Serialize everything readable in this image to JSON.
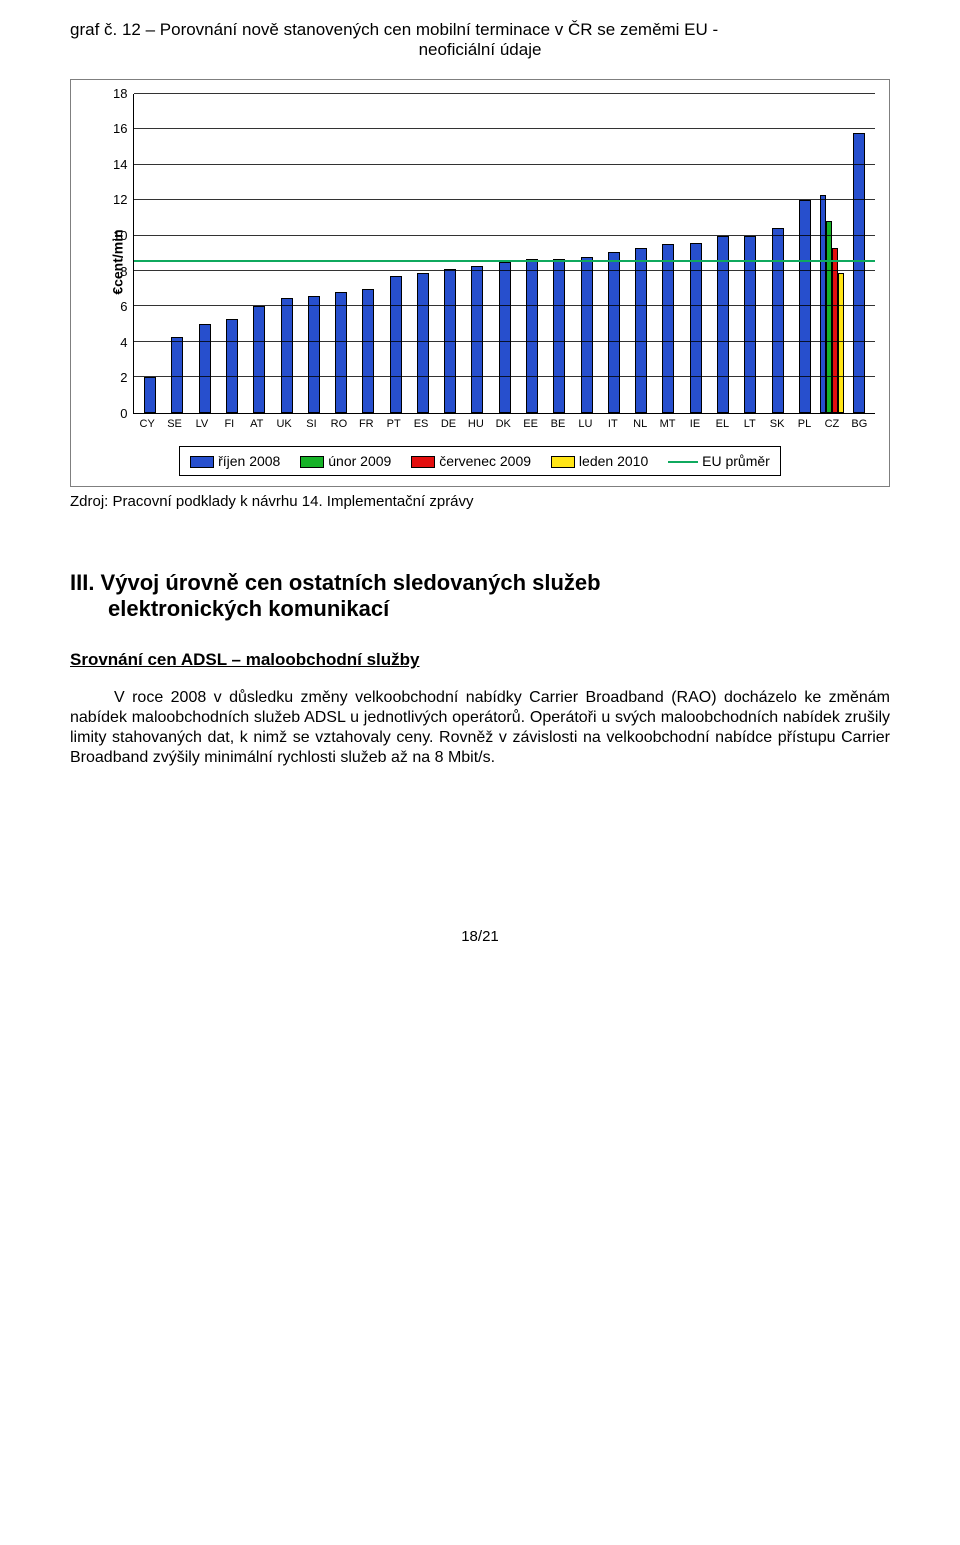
{
  "chart_title_l1": "graf č. 12 – Porovnání nově stanovených cen mobilní terminace v ČR se zeměmi EU -",
  "chart_title_l2": "neoficiální údaje",
  "chart": {
    "y_axis_label": "€cent/min",
    "ymax": 18,
    "ytick_step": 2,
    "avg_value": 8.5,
    "colors": {
      "oct2008": "#274fcd",
      "feb2009": "#16b227",
      "jul2009": "#e30e0e",
      "jan2010": "#ffe516",
      "eu_avg": "#0fa95e",
      "grid": "#000000"
    },
    "categories": [
      "CY",
      "SE",
      "LV",
      "FI",
      "AT",
      "UK",
      "SI",
      "RO",
      "FR",
      "PT",
      "ES",
      "DE",
      "HU",
      "DK",
      "EE",
      "BE",
      "LU",
      "IT",
      "NL",
      "MT",
      "IE",
      "EL",
      "LT",
      "SK",
      "PL",
      "CZ",
      "BG"
    ],
    "series": {
      "oct2008": [
        2.0,
        4.3,
        5.0,
        5.3,
        6.0,
        6.5,
        6.6,
        6.8,
        7.0,
        7.7,
        7.9,
        8.1,
        8.3,
        8.5,
        8.7,
        8.7,
        8.8,
        9.1,
        9.3,
        9.5,
        9.6,
        10.0,
        10.0,
        10.4,
        12.0,
        12.3,
        15.8
      ],
      "feb2009": [
        null,
        null,
        null,
        null,
        null,
        null,
        null,
        null,
        null,
        null,
        null,
        null,
        null,
        null,
        null,
        null,
        null,
        null,
        null,
        null,
        null,
        null,
        null,
        null,
        null,
        10.8,
        null
      ],
      "jul2009": [
        null,
        null,
        null,
        null,
        null,
        null,
        null,
        null,
        null,
        null,
        null,
        null,
        null,
        null,
        null,
        null,
        null,
        null,
        null,
        null,
        null,
        null,
        null,
        null,
        null,
        9.3,
        null
      ],
      "jan2010": [
        null,
        null,
        null,
        null,
        null,
        null,
        null,
        null,
        null,
        null,
        null,
        null,
        null,
        null,
        null,
        null,
        null,
        null,
        null,
        null,
        null,
        null,
        null,
        null,
        null,
        7.9,
        null
      ]
    },
    "legend": [
      {
        "key": "oct2008",
        "label": "říjen 2008"
      },
      {
        "key": "feb2009",
        "label": "únor 2009"
      },
      {
        "key": "jul2009",
        "label": "červenec 2009"
      },
      {
        "key": "jan2010",
        "label": "leden 2010"
      },
      {
        "key": "eu_avg",
        "label": "EU průměr",
        "is_line": true
      }
    ]
  },
  "source_text": "Zdroj: Pracovní podklady k návrhu 14. Implementační zprávy",
  "section_heading_l1": "III. Vývoj úrovně cen ostatních sledovaných služeb",
  "section_heading_l2": "elektronických komunikací",
  "subheading": "Srovnání cen ADSL – maloobchodní služby",
  "paragraph": "V roce 2008 v důsledku změny velkoobchodní nabídky Carrier Broadband (RAO) docházelo ke změnám nabídek maloobchodních služeb ADSL u jednotlivých operátorů. Operátoři u svých maloobchodních nabídek zrušily limity stahovaných dat, k nimž se vztahovaly ceny. Rovněž v závislosti na velkoobchodní nabídce přístupu Carrier Broadband zvýšily minimální rychlosti služeb až na 8 Mbit/s.",
  "page_number": "18/21"
}
